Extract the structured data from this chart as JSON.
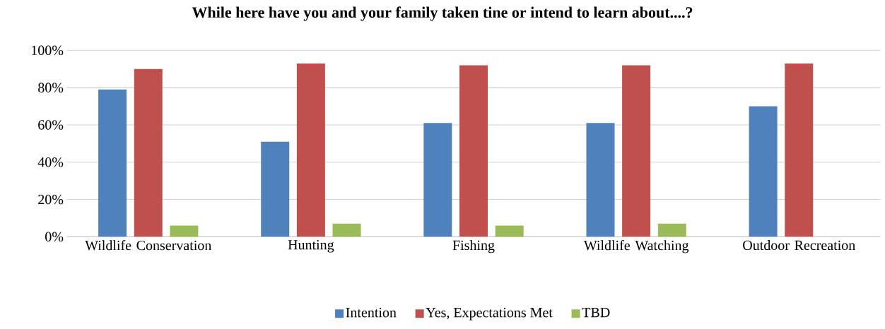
{
  "chart_data": {
    "type": "bar",
    "title": "While here have you and your family taken tine or intend to learn about....?",
    "categories": [
      "Wildlife Conservation",
      "Hunting",
      "Fishing",
      "Wildlife Watching",
      "Outdoor Recreation"
    ],
    "series": [
      {
        "name": "Intention",
        "color": "#4f81bd",
        "values": [
          79,
          51,
          61,
          61,
          70
        ]
      },
      {
        "name": "Yes, Expectations Met",
        "color": "#c0504d",
        "values": [
          90,
          93,
          92,
          92,
          93
        ]
      },
      {
        "name": "TBD",
        "color": "#9bbb59",
        "values": [
          6,
          7,
          6,
          7,
          null
        ]
      }
    ],
    "ylim": [
      0,
      100
    ],
    "yticks": [
      {
        "value": 0,
        "label": "0%"
      },
      {
        "value": 20,
        "label": "20%"
      },
      {
        "value": 40,
        "label": "40%"
      },
      {
        "value": 60,
        "label": "60%"
      },
      {
        "value": 80,
        "label": "80%"
      },
      {
        "value": 100,
        "label": "100%"
      }
    ],
    "grid": "y",
    "legend": "bottom"
  }
}
